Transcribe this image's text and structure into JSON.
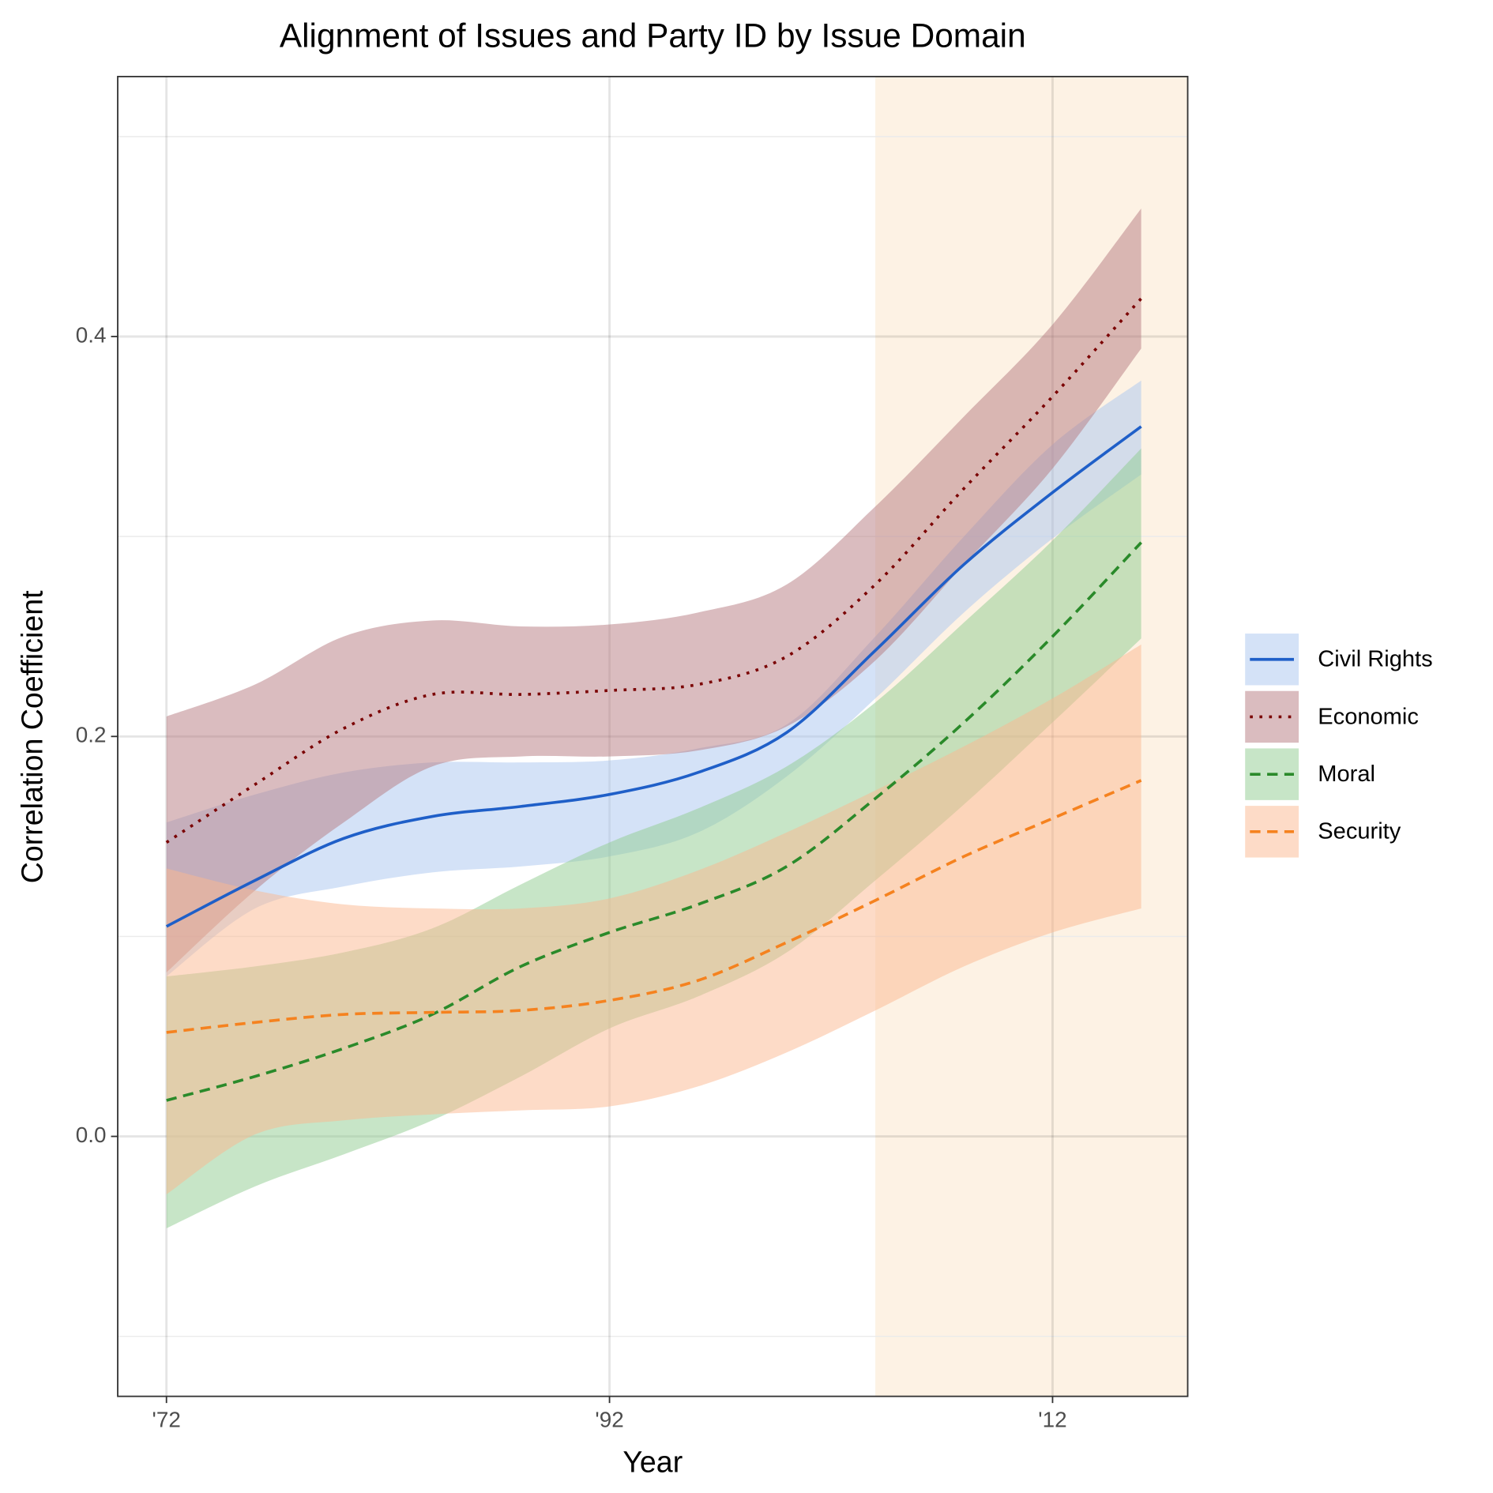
{
  "chart_data": {
    "type": "line-band",
    "title": "Alignment of Issues and Party ID by Issue Domain",
    "xlabel": "Year",
    "ylabel": "Correlation Coefficient",
    "x": [
      1972,
      1976,
      1980,
      1984,
      1988,
      1992,
      1996,
      2000,
      2004,
      2008,
      2012,
      2016
    ],
    "xlim": [
      1969.8,
      2018.1
    ],
    "xticks": [
      {
        "value": 1972,
        "label": "'72"
      },
      {
        "value": 1992,
        "label": "'92"
      },
      {
        "value": 2012,
        "label": "'12"
      }
    ],
    "ylim": [
      -0.13,
      0.53
    ],
    "yticks": [
      {
        "value": 0,
        "label": "0.0"
      },
      0.2,
      0.4
    ],
    "y_minor_grid": [
      -0.1,
      0.1,
      0.3,
      0.5
    ],
    "grid": true,
    "highlight": {
      "start": 2004,
      "color": "#fdf2e4"
    },
    "legend": "right",
    "series": [
      {
        "name": "Civil Rights",
        "color": "#1f5fc8",
        "band_color": "#a9c6ef",
        "dash": "solid",
        "values": [
          0.105,
          0.128,
          0.149,
          0.16,
          0.165,
          0.171,
          0.182,
          0.202,
          0.243,
          0.286,
          0.322,
          0.355
        ],
        "upper": [
          0.157,
          0.171,
          0.182,
          0.187,
          0.187,
          0.188,
          0.194,
          0.206,
          0.25,
          0.3,
          0.346,
          0.378
        ],
        "lower": [
          0.08,
          0.114,
          0.125,
          0.132,
          0.135,
          0.14,
          0.152,
          0.18,
          0.219,
          0.262,
          0.299,
          0.331
        ]
      },
      {
        "name": "Economic",
        "color": "#7a0000",
        "band_color": "#b57a80",
        "dash": "dotted",
        "values": [
          0.147,
          0.176,
          0.204,
          0.221,
          0.221,
          0.223,
          0.226,
          0.24,
          0.276,
          0.324,
          0.37,
          0.419
        ],
        "upper": [
          0.21,
          0.226,
          0.25,
          0.258,
          0.255,
          0.256,
          0.262,
          0.276,
          0.315,
          0.36,
          0.406,
          0.464
        ],
        "lower": [
          0.082,
          0.123,
          0.157,
          0.185,
          0.19,
          0.19,
          0.193,
          0.205,
          0.238,
          0.286,
          0.334,
          0.394
        ]
      },
      {
        "name": "Moral",
        "color": "#2a8a2a",
        "band_color": "#8fcc8f",
        "dash": "dashed",
        "values": [
          0.018,
          0.03,
          0.044,
          0.061,
          0.085,
          0.102,
          0.116,
          0.135,
          0.169,
          0.207,
          0.25,
          0.297
        ],
        "upper": [
          0.08,
          0.085,
          0.092,
          0.104,
          0.126,
          0.147,
          0.164,
          0.185,
          0.217,
          0.257,
          0.298,
          0.344
        ],
        "lower": [
          -0.046,
          -0.025,
          -0.009,
          0.008,
          0.03,
          0.054,
          0.07,
          0.092,
          0.128,
          0.166,
          0.207,
          0.249
        ]
      },
      {
        "name": "Security",
        "color": "#f5821f",
        "band_color": "#fbb88f",
        "dash": "dashed",
        "values": [
          0.052,
          0.057,
          0.061,
          0.062,
          0.063,
          0.068,
          0.078,
          0.097,
          0.118,
          0.14,
          0.159,
          0.178
        ],
        "upper": [
          0.134,
          0.123,
          0.116,
          0.114,
          0.114,
          0.119,
          0.133,
          0.152,
          0.173,
          0.195,
          0.219,
          0.246
        ],
        "lower": [
          -0.029,
          0.001,
          0.008,
          0.011,
          0.013,
          0.015,
          0.025,
          0.042,
          0.063,
          0.085,
          0.102,
          0.114
        ]
      }
    ]
  }
}
